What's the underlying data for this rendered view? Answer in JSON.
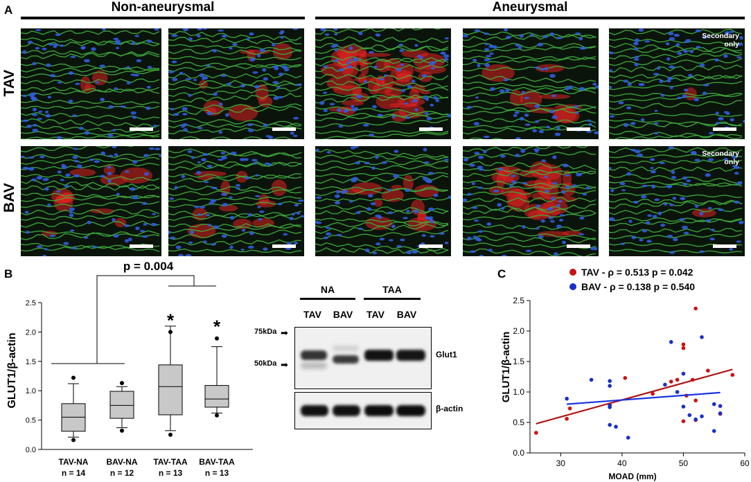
{
  "panel_labels": {
    "a": "A",
    "b": "B",
    "c": "C"
  },
  "panel_a": {
    "group_non_aneurysmal": "Non-aneurysmal",
    "group_aneurysmal": "Aneurysmal",
    "row_tav": "TAV",
    "row_bav": "BAV",
    "secondary_only_label": "Secondary\nonly",
    "colors": {
      "elastin": "#3fae3f",
      "nuclei": "#2f5de0",
      "glut1": "#e02020",
      "background": "#0b140b"
    }
  },
  "panel_b": {
    "pvalue": "p = 0.004",
    "star": "*",
    "western": {
      "groups": [
        "NA",
        "TAA"
      ],
      "lanes": [
        "TAV",
        "BAV",
        "TAV",
        "BAV"
      ],
      "markers": [
        "75kDa",
        "50kDa"
      ],
      "bands": [
        "Glut1",
        "β-actin"
      ]
    }
  },
  "chart_data": [
    {
      "type": "box",
      "ylabel": "GLUT1/β-actin",
      "ylim": [
        0,
        2.5
      ],
      "yticks": [
        "0.0",
        "0.5",
        "1.0",
        "1.5",
        "2.0",
        "2.5"
      ],
      "categories": [
        "TAV-NA",
        "BAV-NA",
        "TAV-TAA",
        "BAV-TAA"
      ],
      "counts": [
        "n = 14",
        "n = 12",
        "n = 13",
        "n = 13"
      ],
      "boxes": [
        {
          "whisker_low": 0.21,
          "q1": 0.31,
          "median": 0.55,
          "q3": 0.78,
          "whisker_high": 1.12,
          "outliers": [
            0.16,
            1.22
          ]
        },
        {
          "whisker_low": 0.37,
          "q1": 0.53,
          "median": 0.75,
          "q3": 0.99,
          "whisker_high": 1.07,
          "outliers": [
            0.32,
            1.13
          ]
        },
        {
          "whisker_low": 0.32,
          "q1": 0.59,
          "median": 1.07,
          "q3": 1.44,
          "whisker_high": 2.1,
          "outliers": [
            0.25,
            2.0
          ]
        },
        {
          "whisker_low": 0.62,
          "q1": 0.72,
          "median": 0.86,
          "q3": 1.09,
          "whisker_high": 1.75,
          "outliers": [
            0.58,
            1.89
          ]
        }
      ],
      "significance": [
        "",
        "",
        "*",
        "*"
      ],
      "annotation": "p = 0.004"
    },
    {
      "type": "scatter",
      "xlabel": "MOAD (mm)",
      "ylabel": "GLUT1/β-actin",
      "xlim": [
        25,
        60
      ],
      "ylim": [
        0,
        2.5
      ],
      "xticks": [
        "30",
        "40",
        "50",
        "60"
      ],
      "yticks": [
        "0.0",
        "0.5",
        "1.0",
        "1.5",
        "2.0",
        "2.5"
      ],
      "legend_position": "top",
      "series": [
        {
          "name": "TAV - ρ = 0.513 p = 0.042",
          "color": "#cc1111",
          "line_color": "#b01515",
          "fit": [
            [
              26,
              0.48
            ],
            [
              58,
              1.37
            ]
          ],
          "points": [
            [
              26,
              0.33
            ],
            [
              31,
              0.56
            ],
            [
              31.5,
              0.73
            ],
            [
              38,
              0.79
            ],
            [
              40.5,
              1.23
            ],
            [
              45,
              0.97
            ],
            [
              48,
              1.17
            ],
            [
              49,
              1.2
            ],
            [
              50,
              0.52
            ],
            [
              50,
              1.72
            ],
            [
              50,
              1.78
            ],
            [
              50.5,
              0.94
            ],
            [
              51.5,
              1.2
            ],
            [
              52,
              0.54
            ],
            [
              52,
              0.86
            ],
            [
              52,
              2.37
            ],
            [
              54,
              1.35
            ],
            [
              56,
              0.64
            ],
            [
              58,
              1.28
            ]
          ]
        },
        {
          "name": "BAV - ρ = 0.138 p = 0.540",
          "color": "#1a2ecc",
          "line_color": "#1a35e0",
          "fit": [
            [
              31,
              0.8
            ],
            [
              56,
              0.99
            ]
          ],
          "points": [
            [
              31,
              0.89
            ],
            [
              35,
              1.2
            ],
            [
              38,
              0.46
            ],
            [
              38,
              0.75
            ],
            [
              38,
              0.78
            ],
            [
              38,
              1.1
            ],
            [
              38,
              1.18
            ],
            [
              39,
              0.43
            ],
            [
              41,
              0.25
            ],
            [
              47,
              1.12
            ],
            [
              48,
              1.82
            ],
            [
              49,
              1.0
            ],
            [
              50,
              0.76
            ],
            [
              50,
              1.3
            ],
            [
              51,
              0.62
            ],
            [
              52,
              0.55
            ],
            [
              53,
              0.6
            ],
            [
              53,
              1.9
            ],
            [
              55,
              0.36
            ],
            [
              55,
              0.8
            ],
            [
              56,
              0.65
            ],
            [
              56,
              0.77
            ]
          ]
        }
      ]
    }
  ]
}
